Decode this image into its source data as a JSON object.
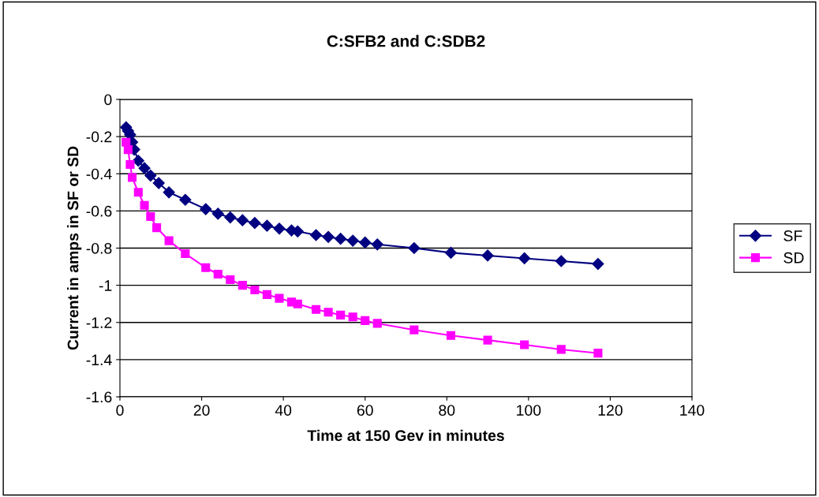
{
  "chart_data": {
    "type": "line",
    "title": "C:SFB2 and C:SDB2",
    "xlabel": "Time at 150 Gev in minutes",
    "ylabel": "Current in amps in SF or SD",
    "x": [
      1.5,
      2,
      2.5,
      3,
      3.5,
      4.5,
      6,
      7.5,
      9.5,
      12,
      16,
      21,
      24,
      27,
      30,
      33,
      36,
      39,
      42,
      43.5,
      48,
      51,
      54,
      57,
      60,
      63,
      72,
      81,
      90,
      99,
      108,
      117
    ],
    "series": [
      {
        "name": "SF",
        "color": "#000080",
        "marker": "diamond",
        "values": [
          -0.15,
          -0.17,
          -0.19,
          -0.23,
          -0.27,
          -0.33,
          -0.37,
          -0.41,
          -0.45,
          -0.5,
          -0.54,
          -0.59,
          -0.615,
          -0.635,
          -0.65,
          -0.665,
          -0.68,
          -0.695,
          -0.705,
          -0.71,
          -0.73,
          -0.74,
          -0.75,
          -0.76,
          -0.77,
          -0.78,
          -0.8,
          -0.825,
          -0.84,
          -0.855,
          -0.87,
          -0.885
        ]
      },
      {
        "name": "SD",
        "color": "#ff00ff",
        "marker": "square",
        "x": [
          1.5,
          2,
          2.5,
          3,
          4.5,
          6,
          7.5,
          9,
          12,
          16,
          21,
          24,
          27,
          30,
          33,
          36,
          39,
          42,
          43.5,
          48,
          51,
          54,
          57,
          60,
          63,
          72,
          81,
          90,
          99,
          108,
          117
        ],
        "values": [
          -0.23,
          -0.27,
          -0.35,
          -0.42,
          -0.5,
          -0.57,
          -0.63,
          -0.69,
          -0.76,
          -0.83,
          -0.905,
          -0.94,
          -0.97,
          -1.0,
          -1.025,
          -1.05,
          -1.07,
          -1.09,
          -1.1,
          -1.13,
          -1.145,
          -1.16,
          -1.17,
          -1.19,
          -1.205,
          -1.24,
          -1.27,
          -1.295,
          -1.32,
          -1.345,
          -1.365
        ]
      }
    ],
    "xlim": [
      0,
      140
    ],
    "xticks": [
      0,
      20,
      40,
      60,
      80,
      100,
      120,
      140
    ],
    "ylim": [
      -1.6,
      0
    ],
    "yticks": [
      -1.6,
      -1.4,
      -1.2,
      -1,
      -0.8,
      -0.6,
      -0.4,
      -0.2,
      0
    ],
    "grid": "y",
    "legend": "right",
    "line_style": "solid"
  }
}
